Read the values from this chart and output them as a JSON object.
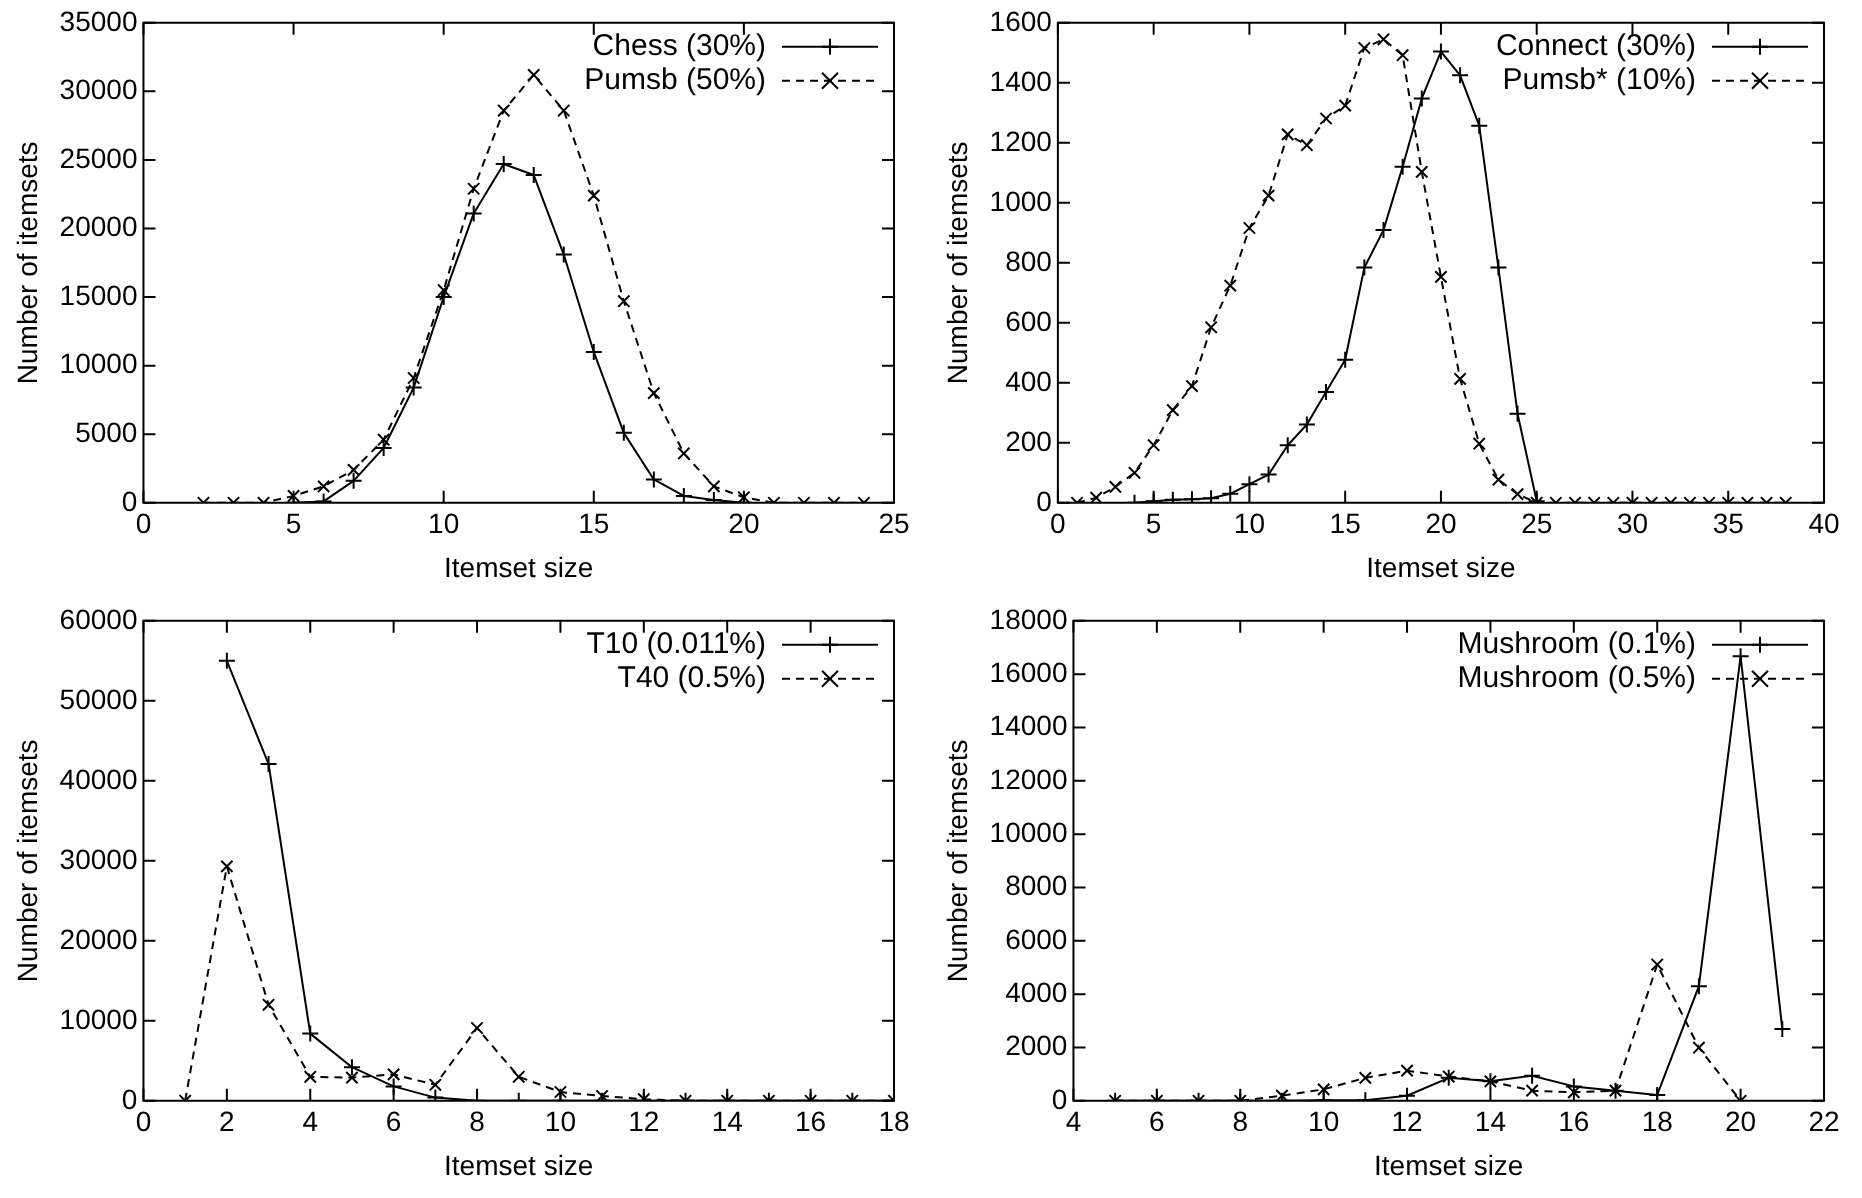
{
  "chart_data": [
    {
      "type": "line",
      "xlabel": "Itemset size",
      "ylabel": "Number of itemsets",
      "xlim": [
        0,
        25
      ],
      "xticks": [
        0,
        5,
        10,
        15,
        20,
        25
      ],
      "ylim": [
        0,
        35000
      ],
      "yticks": [
        0,
        5000,
        10000,
        15000,
        20000,
        25000,
        30000,
        35000
      ],
      "legend": "top right",
      "series": [
        {
          "name": "Chess (30%)",
          "color": "#000000",
          "line_style": "solid",
          "marker": "cross",
          "x": [
            5,
            6,
            7,
            8,
            9,
            10,
            11,
            12,
            13,
            14,
            15,
            16,
            17,
            18,
            19,
            20
          ],
          "values": [
            0,
            100,
            1600,
            4000,
            8400,
            15000,
            21100,
            24700,
            23900,
            18100,
            11000,
            5100,
            1700,
            500,
            200,
            0
          ]
        },
        {
          "name": "Pumsb (50%)",
          "color": "#000000",
          "line_style": "dashed",
          "marker": "x",
          "x": [
            2,
            3,
            4,
            5,
            6,
            7,
            8,
            9,
            10,
            11,
            12,
            13,
            14,
            15,
            16,
            17,
            18,
            19,
            20,
            21,
            22,
            23,
            24
          ],
          "values": [
            0,
            0,
            0,
            500,
            1200,
            2400,
            4600,
            9100,
            15500,
            22900,
            28600,
            31200,
            28600,
            22400,
            14700,
            8000,
            3600,
            1200,
            400,
            0,
            0,
            0,
            0
          ]
        }
      ]
    },
    {
      "type": "line",
      "xlabel": "Itemset size",
      "ylabel": "Number of itemsets",
      "xlim": [
        0,
        40
      ],
      "xticks": [
        0,
        5,
        10,
        15,
        20,
        25,
        30,
        35,
        40
      ],
      "ylim": [
        0,
        1600
      ],
      "yticks": [
        0,
        200,
        400,
        600,
        800,
        1000,
        1200,
        1400,
        1600
      ],
      "legend": "top right",
      "series": [
        {
          "name": "Connect (30%)",
          "color": "#000000",
          "line_style": "solid",
          "marker": "cross",
          "x": [
            4,
            5,
            6,
            7,
            8,
            9,
            10,
            11,
            12,
            13,
            14,
            15,
            16,
            17,
            18,
            19,
            20,
            21,
            22,
            23,
            24,
            25
          ],
          "values": [
            0,
            5,
            10,
            12,
            15,
            30,
            62,
            94,
            192,
            261,
            369,
            477,
            784,
            909,
            1120,
            1348,
            1504,
            1425,
            1257,
            784,
            297,
            5
          ]
        },
        {
          "name": "Pumsb* (10%)",
          "color": "#000000",
          "line_style": "dashed",
          "marker": "x",
          "x": [
            1,
            2,
            3,
            4,
            5,
            6,
            7,
            8,
            9,
            10,
            11,
            12,
            13,
            14,
            15,
            16,
            17,
            18,
            19,
            20,
            21,
            22,
            23,
            24,
            25,
            26,
            27,
            28,
            29,
            30,
            31,
            32,
            33,
            34,
            35,
            36,
            37,
            38
          ],
          "values": [
            0,
            17,
            53,
            100,
            192,
            309,
            389,
            585,
            724,
            916,
            1024,
            1228,
            1192,
            1281,
            1324,
            1516,
            1545,
            1492,
            1103,
            753,
            413,
            197,
            77,
            29,
            0,
            0,
            0,
            0,
            0,
            0,
            0,
            0,
            0,
            0,
            0,
            0,
            0,
            0
          ]
        }
      ]
    },
    {
      "type": "line",
      "xlabel": "Itemset size",
      "ylabel": "Number of itemsets",
      "xlim": [
        0,
        18
      ],
      "xticks": [
        0,
        2,
        4,
        6,
        8,
        10,
        12,
        14,
        16,
        18
      ],
      "ylim": [
        0,
        60000
      ],
      "yticks": [
        0,
        10000,
        20000,
        30000,
        40000,
        50000,
        60000
      ],
      "legend": "top right",
      "series": [
        {
          "name": "T10 (0.011%)",
          "color": "#000000",
          "line_style": "solid",
          "marker": "cross",
          "x": [
            2,
            3,
            4,
            5,
            6,
            7,
            8,
            9,
            10,
            11,
            12,
            13,
            14,
            15,
            16,
            17,
            18
          ],
          "values": [
            55000,
            42100,
            8400,
            4200,
            1800,
            400,
            0,
            0,
            0,
            0,
            0,
            0,
            0,
            0,
            0,
            0,
            0
          ]
        },
        {
          "name": "T40 (0.5%)",
          "color": "#000000",
          "line_style": "dashed",
          "marker": "x",
          "x": [
            1,
            2,
            3,
            4,
            5,
            6,
            7,
            8,
            9,
            10,
            11,
            12,
            13,
            14,
            15,
            16,
            17,
            18
          ],
          "values": [
            0,
            29300,
            12000,
            3000,
            2900,
            3300,
            2000,
            9100,
            3000,
            1100,
            600,
            200,
            0,
            0,
            0,
            0,
            0,
            0
          ]
        }
      ]
    },
    {
      "type": "line",
      "xlabel": "Itemset size",
      "ylabel": "Number of itemsets",
      "xlim": [
        4,
        22
      ],
      "xticks": [
        4,
        6,
        8,
        10,
        12,
        14,
        16,
        18,
        20,
        22
      ],
      "ylim": [
        0,
        18000
      ],
      "yticks": [
        0,
        2000,
        4000,
        6000,
        8000,
        10000,
        12000,
        14000,
        16000,
        18000
      ],
      "legend": "top right",
      "series": [
        {
          "name": "Mushroom (0.1%)",
          "color": "#000000",
          "line_style": "solid",
          "marker": "cross",
          "x": [
            5,
            6,
            7,
            8,
            9,
            10,
            11,
            12,
            13,
            14,
            15,
            16,
            17,
            18,
            19,
            20,
            21
          ],
          "values": [
            0,
            0,
            0,
            0,
            0,
            20,
            20,
            190,
            860,
            730,
            940,
            540,
            380,
            220,
            4300,
            16670,
            2690
          ]
        },
        {
          "name": "Mushroom (0.5%)",
          "color": "#000000",
          "line_style": "dashed",
          "marker": "x",
          "x": [
            5,
            6,
            7,
            8,
            9,
            10,
            11,
            12,
            13,
            14,
            15,
            16,
            17,
            18,
            19,
            20
          ],
          "values": [
            0,
            0,
            0,
            0,
            190,
            430,
            860,
            1130,
            910,
            730,
            380,
            320,
            380,
            5110,
            1990,
            0
          ]
        }
      ]
    }
  ]
}
